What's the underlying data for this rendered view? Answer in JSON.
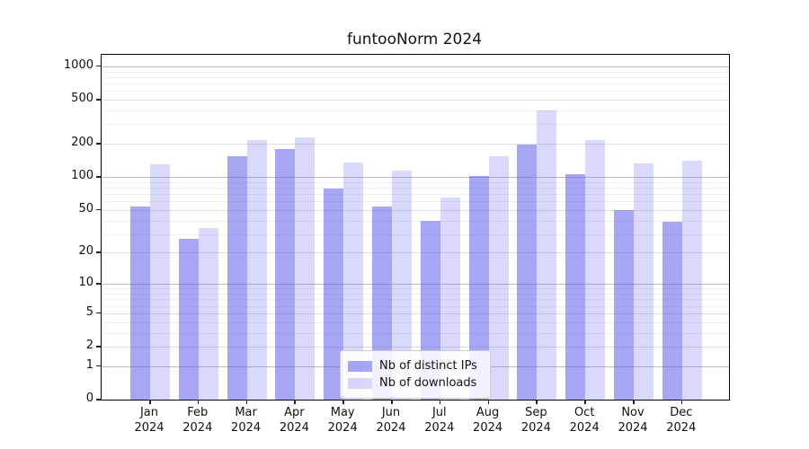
{
  "chart_data": {
    "type": "bar",
    "title": "funtooNorm 2024",
    "categories": [
      "Jan 2024",
      "Feb 2024",
      "Mar 2024",
      "Apr 2024",
      "May 2024",
      "Jun 2024",
      "Jul 2024",
      "Aug 2024",
      "Sep 2024",
      "Oct 2024",
      "Nov 2024",
      "Dec 2024"
    ],
    "series": [
      {
        "name": "Nb of distinct IPs",
        "color": "rgba(102,102,238,0.58)",
        "values": [
          54,
          27,
          155,
          180,
          78,
          54,
          40,
          103,
          195,
          106,
          50,
          39
        ]
      },
      {
        "name": "Nb of downloads",
        "color": "rgba(102,102,238,0.25)",
        "values": [
          130,
          34,
          215,
          230,
          135,
          115,
          65,
          155,
          400,
          215,
          133,
          140
        ]
      }
    ],
    "y_axis": {
      "scale": "log10(1+x)",
      "tick_labels": [
        "1000",
        "500",
        "200",
        "100",
        "50",
        "20",
        "10",
        "5",
        "2",
        "1",
        "0"
      ],
      "tick_values": [
        1000,
        500,
        200,
        100,
        50,
        20,
        10,
        5,
        2,
        1,
        0
      ],
      "major_grid_values": [
        1,
        10,
        100,
        1000
      ],
      "mid_grid_values": [
        2,
        5,
        20,
        50,
        200,
        500
      ],
      "minor_grid_values": [
        3,
        4,
        6,
        7,
        8,
        9,
        30,
        40,
        60,
        70,
        80,
        90,
        300,
        400,
        600,
        700,
        800,
        900
      ]
    },
    "legend_position": "lower center",
    "grid": true
  },
  "colors": {
    "bar_dark": "rgba(102,102,238,0.58)",
    "bar_light": "rgba(102,102,238,0.25)",
    "spine": "#000000",
    "legend_border": "#cccccc"
  }
}
